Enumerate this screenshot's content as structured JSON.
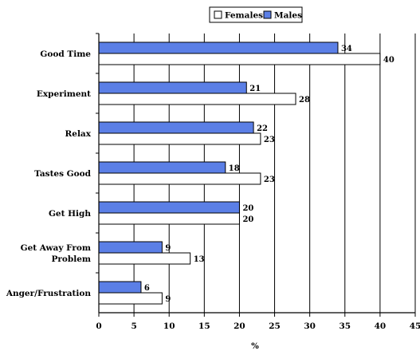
{
  "chart_data": {
    "type": "bar",
    "orientation": "horizontal",
    "categories": [
      "Good Time",
      "Experiment",
      "Relax",
      "Tastes Good",
      "Get High",
      "Get Away From Problem",
      "Anger/Frustration"
    ],
    "category_display": [
      [
        "Good Time"
      ],
      [
        "Experiment"
      ],
      [
        "Relax"
      ],
      [
        "Tastes Good"
      ],
      [
        "Get High"
      ],
      [
        "Get Away From",
        "Problem"
      ],
      [
        "Anger/Frustration"
      ]
    ],
    "series": [
      {
        "name": "Males",
        "values": [
          34,
          21,
          22,
          18,
          20,
          9,
          6
        ],
        "color": "#5b7fe6"
      },
      {
        "name": "Females",
        "values": [
          40,
          28,
          23,
          23,
          20,
          13,
          9
        ],
        "color": "#ffffff"
      }
    ],
    "legend_order": [
      "Females",
      "Males"
    ],
    "xlabel": "%",
    "xlim": [
      0,
      45
    ],
    "xticks": [
      0,
      5,
      10,
      15,
      20,
      25,
      30,
      35,
      40,
      45
    ],
    "grid": "vertical",
    "legend_position": "top-right"
  }
}
